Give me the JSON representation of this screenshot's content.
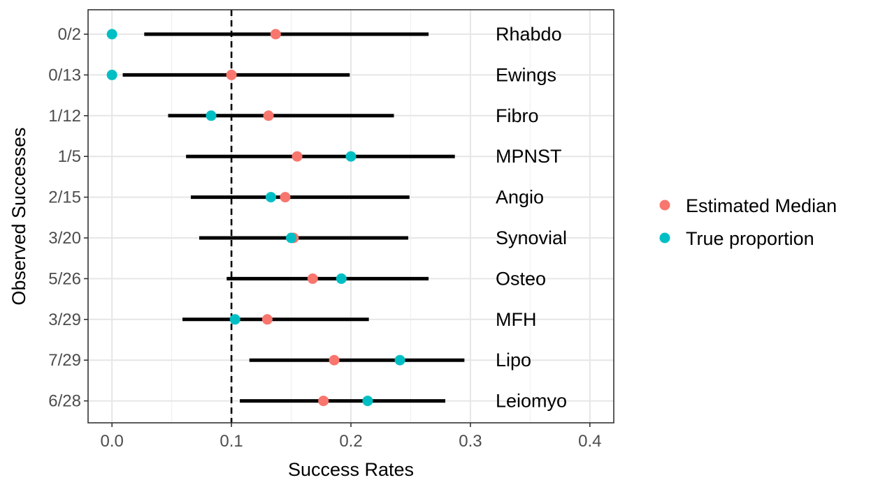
{
  "chart_data": {
    "type": "scatter",
    "subtype": "forest-plot",
    "xlabel": "Success Rates",
    "ylabel": "Observed Successes",
    "xlim": [
      -0.02,
      0.42
    ],
    "x_ticks": [
      "0.0",
      "0.1",
      "0.2",
      "0.3",
      "0.4"
    ],
    "x_tick_values": [
      0.0,
      0.1,
      0.2,
      0.3,
      0.4
    ],
    "reference_line": 0.1,
    "grid": true,
    "legend_position": "right",
    "legend": [
      {
        "name": "Estimated Median",
        "color": "#F8766D"
      },
      {
        "name": "True proportion",
        "color": "#00BFC4"
      }
    ],
    "rows": [
      {
        "observed": "0/2",
        "subtype": "Rhabdo",
        "lo": 0.027,
        "hi": 0.265,
        "median": 0.137,
        "true": 0.0
      },
      {
        "observed": "0/13",
        "subtype": "Ewings",
        "lo": 0.009,
        "hi": 0.199,
        "median": 0.1,
        "true": 0.0
      },
      {
        "observed": "1/12",
        "subtype": "Fibro",
        "lo": 0.047,
        "hi": 0.236,
        "median": 0.131,
        "true": 0.083
      },
      {
        "observed": "1/5",
        "subtype": "MPNST",
        "lo": 0.062,
        "hi": 0.287,
        "median": 0.155,
        "true": 0.2
      },
      {
        "observed": "2/15",
        "subtype": "Angio",
        "lo": 0.066,
        "hi": 0.249,
        "median": 0.145,
        "true": 0.133
      },
      {
        "observed": "3/20",
        "subtype": "Synovial",
        "lo": 0.073,
        "hi": 0.248,
        "median": 0.152,
        "true": 0.15
      },
      {
        "observed": "5/26",
        "subtype": "Osteo",
        "lo": 0.096,
        "hi": 0.265,
        "median": 0.168,
        "true": 0.192
      },
      {
        "observed": "3/29",
        "subtype": "MFH",
        "lo": 0.059,
        "hi": 0.215,
        "median": 0.13,
        "true": 0.103
      },
      {
        "observed": "7/29",
        "subtype": "Lipo",
        "lo": 0.115,
        "hi": 0.295,
        "median": 0.186,
        "true": 0.241
      },
      {
        "observed": "6/28",
        "subtype": "Leiomyo",
        "lo": 0.107,
        "hi": 0.279,
        "median": 0.177,
        "true": 0.214
      }
    ]
  }
}
